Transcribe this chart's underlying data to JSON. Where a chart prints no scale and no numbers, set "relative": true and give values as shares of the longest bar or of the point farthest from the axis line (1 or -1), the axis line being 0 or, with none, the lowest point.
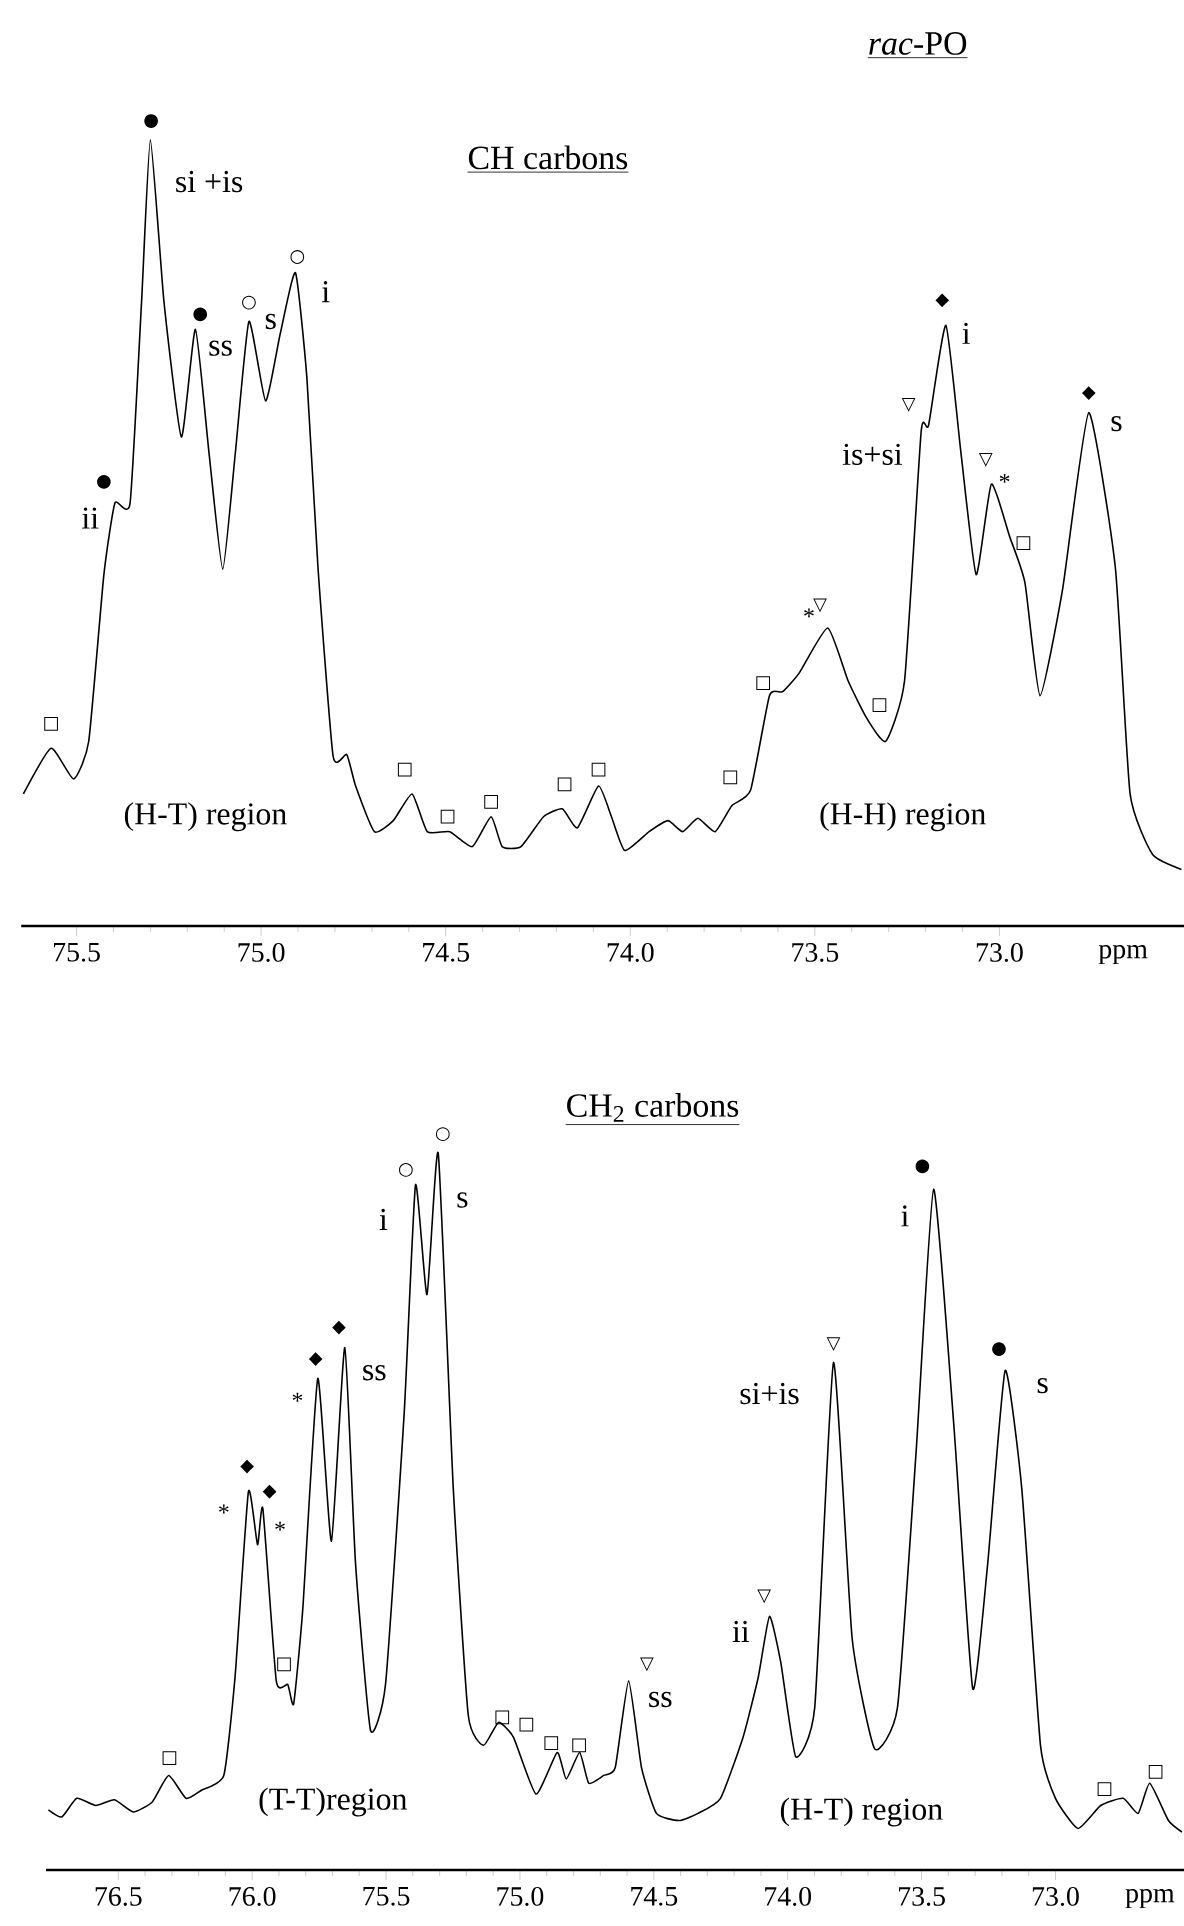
{
  "chart_data": [
    {
      "type": "line",
      "title": "*rac*-PO",
      "subtitle": "CH carbons",
      "xlabel": "ppm",
      "relative": true,
      "xlim": [
        75.65,
        72.5
      ],
      "xticks": [
        75.5,
        {
          "value": 75.0,
          "label": "75.0"
        },
        74.5,
        {
          "value": 74.0,
          "label": "74.0"
        },
        73.5,
        {
          "value": 73.0,
          "label": "73.0"
        }
      ],
      "x": [
        75.644,
        75.569,
        75.508,
        75.467,
        75.426,
        75.396,
        75.355,
        75.324,
        75.3,
        75.263,
        75.216,
        75.178,
        75.141,
        75.104,
        75.07,
        75.033,
        74.988,
        74.948,
        74.907,
        74.876,
        74.846,
        74.805,
        74.768,
        74.744,
        74.693,
        74.642,
        74.591,
        74.55,
        74.489,
        74.428,
        74.377,
        74.347,
        74.296,
        74.235,
        74.184,
        74.143,
        74.086,
        74.051,
        74.015,
        73.949,
        73.898,
        73.858,
        73.817,
        73.77,
        73.725,
        73.674,
        73.623,
        73.587,
        73.542,
        73.465,
        73.41,
        73.359,
        73.308,
        73.257,
        73.212,
        73.192,
        73.145,
        73.104,
        73.063,
        73.022,
        72.972,
        72.931,
        72.89,
        72.829,
        72.758,
        72.686,
        72.646,
        72.585,
        72.507
      ],
      "series": [
        {
          "color": "#000000",
          "values": [
            0.168,
            0.226,
            0.187,
            0.235,
            0.447,
            0.538,
            0.538,
            0.793,
            1.0,
            0.793,
            0.622,
            0.759,
            0.601,
            0.454,
            0.601,
            0.769,
            0.668,
            0.754,
            0.831,
            0.697,
            0.456,
            0.216,
            0.218,
            0.178,
            0.12,
            0.134,
            0.168,
            0.12,
            0.12,
            0.101,
            0.139,
            0.101,
            0.101,
            0.139,
            0.149,
            0.125,
            0.178,
            0.139,
            0.096,
            0.12,
            0.134,
            0.12,
            0.137,
            0.12,
            0.153,
            0.173,
            0.293,
            0.298,
            0.322,
            0.379,
            0.312,
            0.264,
            0.235,
            0.312,
            0.629,
            0.637,
            0.764,
            0.601,
            0.447,
            0.562,
            0.495,
            0.437,
            0.293,
            0.428,
            0.653,
            0.456,
            0.168,
            0.091,
            0.072
          ]
        }
      ],
      "annotations": [
        "●",
        "si +is",
        "●",
        "ss",
        "○",
        "s",
        "○",
        "i",
        "●",
        "ii",
        "□",
        "(H-T) region",
        "□",
        "□",
        "□",
        "□",
        "□",
        "□",
        "□",
        "*",
        "▽",
        "□",
        "(H-H) region",
        "▽",
        "is+si",
        "◆",
        "i",
        "▽",
        "*",
        "□",
        "◆",
        "s"
      ]
    },
    {
      "type": "line",
      "title": "CH$_{2}$ carbons",
      "xlabel": "ppm",
      "relative": true,
      "xlim": [
        76.77,
        72.52
      ],
      "xticks": [
        76.5,
        {
          "value": 76.0,
          "label": "76.0"
        },
        75.5,
        {
          "value": 75.0,
          "label": "75.0"
        },
        74.5,
        {
          "value": 74.0,
          "label": "74.0"
        },
        73.5,
        {
          "value": 73.0,
          "label": "73.0"
        }
      ],
      "x": [
        76.761,
        76.711,
        76.655,
        76.584,
        76.514,
        76.444,
        76.373,
        76.312,
        76.247,
        76.191,
        76.106,
        76.064,
        76.014,
        75.98,
        75.96,
        75.91,
        75.867,
        75.845,
        75.811,
        75.755,
        75.704,
        75.654,
        75.614,
        75.558,
        75.502,
        75.432,
        75.39,
        75.347,
        75.305,
        75.249,
        75.193,
        75.136,
        75.08,
        75.024,
        74.94,
        74.861,
        74.827,
        74.777,
        74.743,
        74.687,
        74.644,
        74.594,
        74.546,
        74.49,
        74.406,
        74.335,
        74.251,
        74.167,
        74.11,
        74.068,
        74.026,
        73.97,
        73.899,
        73.829,
        73.759,
        73.675,
        73.59,
        73.52,
        73.455,
        73.379,
        73.309,
        73.253,
        73.188,
        73.126,
        73.056,
        73.0,
        72.916,
        72.831,
        72.747,
        72.691,
        72.648,
        72.578,
        72.528
      ],
      "series": [
        {
          "color": "#000000",
          "values": [
            0.084,
            0.074,
            0.1,
            0.09,
            0.098,
            0.081,
            0.095,
            0.132,
            0.1,
            0.111,
            0.132,
            0.269,
            0.528,
            0.454,
            0.504,
            0.264,
            0.259,
            0.232,
            0.364,
            0.686,
            0.459,
            0.729,
            0.428,
            0.195,
            0.259,
            0.639,
            0.956,
            0.803,
            1.0,
            0.533,
            0.216,
            0.174,
            0.206,
            0.185,
            0.106,
            0.164,
            0.127,
            0.164,
            0.121,
            0.132,
            0.143,
            0.264,
            0.143,
            0.079,
            0.069,
            0.079,
            0.1,
            0.185,
            0.269,
            0.354,
            0.29,
            0.158,
            0.227,
            0.708,
            0.322,
            0.169,
            0.227,
            0.586,
            0.95,
            0.618,
            0.253,
            0.428,
            0.697,
            0.533,
            0.174,
            0.1,
            0.058,
            0.09,
            0.1,
            0.079,
            0.121,
            0.069,
            0.053
          ]
        }
      ],
      "annotations": [
        "○",
        "i",
        "○",
        "s",
        "◆",
        "ss",
        "◆",
        "*",
        "◆",
        "◆",
        "*",
        "*",
        "□",
        "□",
        "(T-T)region",
        "□",
        "□",
        "□",
        "□",
        "▽",
        "ss",
        "▽",
        "ii",
        "si+is",
        "▽",
        "●",
        "i",
        "●",
        "s",
        "(H-T) region",
        "□",
        "□"
      ]
    }
  ]
}
